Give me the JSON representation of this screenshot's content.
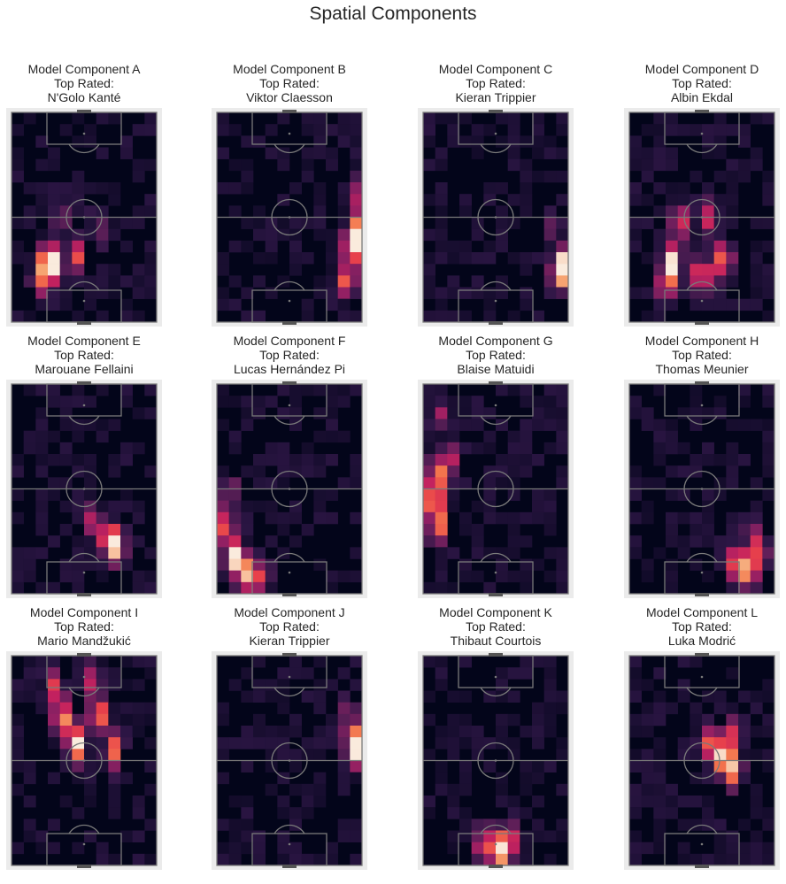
{
  "title": "Spatial Components",
  "colors": {
    "frame": "#ebebeb",
    "pitch_lines": "#7a7a7a",
    "colormap": [
      "#03051a",
      "#2d1645",
      "#5f1f58",
      "#8f2063",
      "#c2215f",
      "#e8414b",
      "#f3754d",
      "#f6a673",
      "#f9d8c2",
      "#faebdd"
    ]
  },
  "chart_data": [
    {
      "type": "heatmap",
      "component": "Model Component A",
      "top_rated_label": "Top Rated:",
      "top_rated": "N'Golo Kanté",
      "peak_zone": "left half, own third",
      "hotspots": [
        {
          "x": 0.25,
          "y": 0.71,
          "v": 1.0
        },
        {
          "x": 0.3,
          "y": 0.73,
          "v": 0.75
        },
        {
          "x": 0.45,
          "y": 0.68,
          "v": 0.55
        },
        {
          "x": 0.2,
          "y": 0.8,
          "v": 0.45
        },
        {
          "x": 0.6,
          "y": 0.55,
          "v": 0.3
        },
        {
          "x": 0.35,
          "y": 0.5,
          "v": 0.3
        }
      ]
    },
    {
      "type": "heatmap",
      "component": "Model Component B",
      "top_rated_label": "Top Rated:",
      "top_rated": "Viktor Claesson",
      "peak_zone": "right wing, own half",
      "hotspots": [
        {
          "x": 0.96,
          "y": 0.58,
          "v": 1.0
        },
        {
          "x": 0.93,
          "y": 0.65,
          "v": 0.7
        },
        {
          "x": 0.9,
          "y": 0.8,
          "v": 0.65
        },
        {
          "x": 0.94,
          "y": 0.4,
          "v": 0.35
        }
      ]
    },
    {
      "type": "heatmap",
      "component": "Model Component C",
      "top_rated_label": "Top Rated:",
      "top_rated": "Kieran Trippier",
      "peak_zone": "right wing, defensive third",
      "hotspots": [
        {
          "x": 0.96,
          "y": 0.73,
          "v": 1.0
        },
        {
          "x": 0.93,
          "y": 0.78,
          "v": 0.5
        },
        {
          "x": 0.9,
          "y": 0.55,
          "v": 0.25
        }
      ]
    },
    {
      "type": "heatmap",
      "component": "Model Component D",
      "top_rated_label": "Top Rated:",
      "top_rated": "Albin Ekdal",
      "peak_zone": "central, own half",
      "hotspots": [
        {
          "x": 0.3,
          "y": 0.72,
          "v": 1.0
        },
        {
          "x": 0.5,
          "y": 0.78,
          "v": 0.85
        },
        {
          "x": 0.65,
          "y": 0.7,
          "v": 0.75
        },
        {
          "x": 0.35,
          "y": 0.52,
          "v": 0.55
        },
        {
          "x": 0.55,
          "y": 0.5,
          "v": 0.5
        },
        {
          "x": 0.25,
          "y": 0.82,
          "v": 0.6
        }
      ]
    },
    {
      "type": "heatmap",
      "component": "Model Component E",
      "top_rated_label": "Top Rated:",
      "top_rated": "Marouane Fellaini",
      "peak_zone": "right of centre, own half",
      "hotspots": [
        {
          "x": 0.72,
          "y": 0.77,
          "v": 1.0
        },
        {
          "x": 0.65,
          "y": 0.73,
          "v": 0.6
        },
        {
          "x": 0.55,
          "y": 0.65,
          "v": 0.35
        }
      ]
    },
    {
      "type": "heatmap",
      "component": "Model Component F",
      "top_rated_label": "Top Rated:",
      "top_rated": "Lucas Hernández Pi",
      "peak_zone": "left wing, defensive third",
      "hotspots": [
        {
          "x": 0.12,
          "y": 0.82,
          "v": 1.0
        },
        {
          "x": 0.2,
          "y": 0.9,
          "v": 0.85
        },
        {
          "x": 0.05,
          "y": 0.68,
          "v": 0.6
        },
        {
          "x": 0.3,
          "y": 0.92,
          "v": 0.5
        },
        {
          "x": 0.08,
          "y": 0.5,
          "v": 0.3
        }
      ]
    },
    {
      "type": "heatmap",
      "component": "Model Component G",
      "top_rated_label": "Top Rated:",
      "top_rated": "Blaise Matuidi",
      "peak_zone": "left touchline, middle third",
      "hotspots": [
        {
          "x": 0.08,
          "y": 0.55,
          "v": 1.0
        },
        {
          "x": 0.1,
          "y": 0.42,
          "v": 0.7
        },
        {
          "x": 0.1,
          "y": 0.68,
          "v": 0.75
        },
        {
          "x": 0.2,
          "y": 0.35,
          "v": 0.35
        },
        {
          "x": 0.12,
          "y": 0.15,
          "v": 0.3
        }
      ]
    },
    {
      "type": "heatmap",
      "component": "Model Component H",
      "top_rated_label": "Top Rated:",
      "top_rated": "Thomas Meunier",
      "peak_zone": "right side, defensive third",
      "hotspots": [
        {
          "x": 0.82,
          "y": 0.88,
          "v": 1.0
        },
        {
          "x": 0.72,
          "y": 0.85,
          "v": 0.6
        },
        {
          "x": 0.9,
          "y": 0.8,
          "v": 0.5
        },
        {
          "x": 0.85,
          "y": 0.7,
          "v": 0.3
        }
      ]
    },
    {
      "type": "heatmap",
      "component": "Model Component I",
      "top_rated_label": "Top Rated:",
      "top_rated": "Mario Mandžukić",
      "peak_zone": "central, attacking half",
      "hotspots": [
        {
          "x": 0.45,
          "y": 0.42,
          "v": 1.0
        },
        {
          "x": 0.35,
          "y": 0.3,
          "v": 0.85
        },
        {
          "x": 0.6,
          "y": 0.28,
          "v": 0.75
        },
        {
          "x": 0.3,
          "y": 0.15,
          "v": 0.6
        },
        {
          "x": 0.7,
          "y": 0.45,
          "v": 0.65
        },
        {
          "x": 0.55,
          "y": 0.12,
          "v": 0.5
        }
      ]
    },
    {
      "type": "heatmap",
      "component": "Model Component J",
      "top_rated_label": "Top Rated:",
      "top_rated": "Kieran Trippier",
      "peak_zone": "right wing, halfway line",
      "hotspots": [
        {
          "x": 0.96,
          "y": 0.45,
          "v": 1.0
        },
        {
          "x": 0.93,
          "y": 0.38,
          "v": 0.5
        },
        {
          "x": 0.9,
          "y": 0.25,
          "v": 0.3
        }
      ]
    },
    {
      "type": "heatmap",
      "component": "Model Component K",
      "top_rated_label": "Top Rated:",
      "top_rated": "Thibaut Courtois",
      "peak_zone": "own goal area",
      "hotspots": [
        {
          "x": 0.52,
          "y": 0.93,
          "v": 1.0
        },
        {
          "x": 0.42,
          "y": 0.9,
          "v": 0.6
        },
        {
          "x": 0.6,
          "y": 0.88,
          "v": 0.5
        }
      ]
    },
    {
      "type": "heatmap",
      "component": "Model Component L",
      "top_rated_label": "Top Rated:",
      "top_rated": "Luka Modrić",
      "peak_zone": "right of centre, midfield",
      "hotspots": [
        {
          "x": 0.65,
          "y": 0.48,
          "v": 1.0
        },
        {
          "x": 0.72,
          "y": 0.55,
          "v": 0.75
        },
        {
          "x": 0.55,
          "y": 0.42,
          "v": 0.55
        },
        {
          "x": 0.7,
          "y": 0.38,
          "v": 0.45
        }
      ]
    }
  ]
}
